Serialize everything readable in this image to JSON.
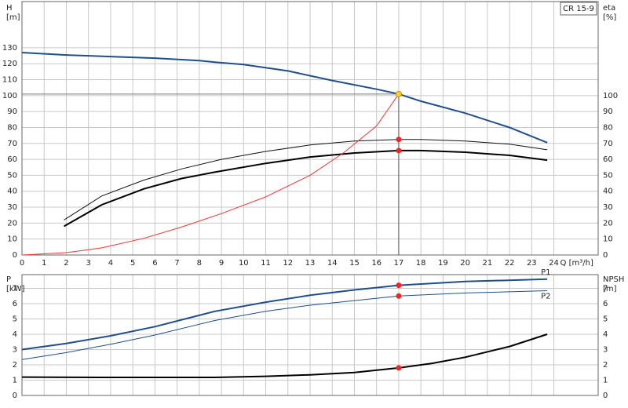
{
  "chart_data": [
    {
      "type": "line",
      "title": "CR 15-9",
      "ylabel": [
        "H",
        "[m]"
      ],
      "y2label": [
        "eta",
        "[%]"
      ],
      "xlabel": "Q [m³/h]",
      "xlim": [
        0,
        26
      ],
      "xticks": [
        0,
        1,
        2,
        3,
        4,
        5,
        6,
        7,
        8,
        9,
        10,
        11,
        12,
        13,
        14,
        15,
        16,
        17,
        18,
        19,
        20,
        21,
        22,
        23,
        24
      ],
      "ylim": [
        0,
        159
      ],
      "yticks": [
        0,
        10,
        20,
        30,
        40,
        50,
        60,
        70,
        80,
        90,
        100,
        110,
        120,
        130
      ],
      "y2lim": [
        0,
        159
      ],
      "y2ticks": [
        0,
        10,
        20,
        30,
        40,
        50,
        60,
        70,
        80,
        90,
        100
      ],
      "grid": true,
      "series": [
        {
          "color": "#1f4e8c",
          "width": 2,
          "x": [
            0,
            2,
            4,
            6,
            8,
            8.7,
            10,
            12,
            14,
            16,
            17,
            18,
            20,
            22,
            23.7
          ],
          "values": [
            127,
            125.5,
            124.5,
            123.5,
            122,
            121,
            119.5,
            115.5,
            109.5,
            104,
            101,
            96.5,
            89,
            80,
            70.5
          ]
        },
        {
          "color": "#111111",
          "width": 1,
          "axis": "y2",
          "x": [
            1.9,
            3.6,
            5.5,
            7.2,
            9,
            11,
            13,
            15,
            17,
            18,
            20,
            22,
            23.7
          ],
          "values": [
            22,
            37,
            47,
            54,
            60,
            65,
            69,
            71.5,
            72.5,
            72.5,
            71.5,
            69.5,
            66
          ]
        },
        {
          "color": "#000000",
          "width": 2,
          "axis": "y2",
          "x": [
            1.9,
            3.6,
            5.5,
            7.2,
            8.7,
            11,
            13,
            15,
            17,
            18,
            20,
            22,
            23.7
          ],
          "values": [
            18,
            31.5,
            41.5,
            48,
            52,
            57.5,
            61.5,
            64,
            65.5,
            65.5,
            64.5,
            62.5,
            59.5
          ]
        },
        {
          "color": "#ff3030",
          "width": 1,
          "x": [
            0,
            2,
            3.6,
            5.5,
            7.2,
            9,
            11,
            13,
            14.5,
            16,
            17
          ],
          "values": [
            0,
            1.5,
            4.5,
            10.5,
            17.5,
            26,
            36.5,
            50,
            64,
            81,
            101
          ]
        }
      ],
      "markers": [
        {
          "x": 17,
          "y": 101,
          "color": "#ffd21f",
          "guide": true
        },
        {
          "x": 17,
          "y": 72.5,
          "color": "#ff2020",
          "axis": "y2"
        },
        {
          "x": 17,
          "y": 65.5,
          "color": "#ff2020",
          "axis": "y2"
        }
      ]
    },
    {
      "type": "line",
      "ylabel": [
        "P",
        "[kW]"
      ],
      "y2label": [
        "NPSH",
        "[m]"
      ],
      "xlim": [
        0,
        26
      ],
      "ylim": [
        0,
        7.9
      ],
      "yticks": [
        0,
        1,
        2,
        3,
        4,
        5,
        6,
        7
      ],
      "y2lim": [
        0,
        7.9
      ],
      "y2ticks": [
        0,
        1,
        2,
        3,
        4,
        5,
        6,
        7
      ],
      "grid": true,
      "series": [
        {
          "name": "P1",
          "color": "#1f4e8c",
          "width": 2,
          "x": [
            0,
            2,
            4,
            6,
            8.7,
            11,
            13,
            15,
            17,
            20,
            23.7
          ],
          "values": [
            3,
            3.4,
            3.9,
            4.5,
            5.5,
            6.1,
            6.55,
            6.9,
            7.2,
            7.45,
            7.6
          ]
        },
        {
          "name": "P2",
          "color": "#1f4e8c",
          "width": 1,
          "x": [
            0,
            2,
            4,
            6,
            8.7,
            11,
            13,
            15,
            17,
            20,
            23.7
          ],
          "values": [
            2.35,
            2.8,
            3.35,
            3.95,
            4.9,
            5.5,
            5.9,
            6.2,
            6.5,
            6.7,
            6.85
          ]
        },
        {
          "color": "#000000",
          "width": 2,
          "axis": "y2",
          "x": [
            0,
            4,
            8.7,
            11,
            13,
            15,
            17,
            18.5,
            20,
            22,
            23.7
          ],
          "values": [
            1.2,
            1.18,
            1.18,
            1.25,
            1.35,
            1.5,
            1.8,
            2.1,
            2.5,
            3.2,
            4
          ]
        }
      ],
      "markers": [
        {
          "x": 17,
          "y": 7.2,
          "color": "#ff2020"
        },
        {
          "x": 17,
          "y": 6.5,
          "color": "#ff2020"
        },
        {
          "x": 17,
          "y": 1.8,
          "color": "#ff2020",
          "axis": "y2"
        }
      ]
    }
  ]
}
